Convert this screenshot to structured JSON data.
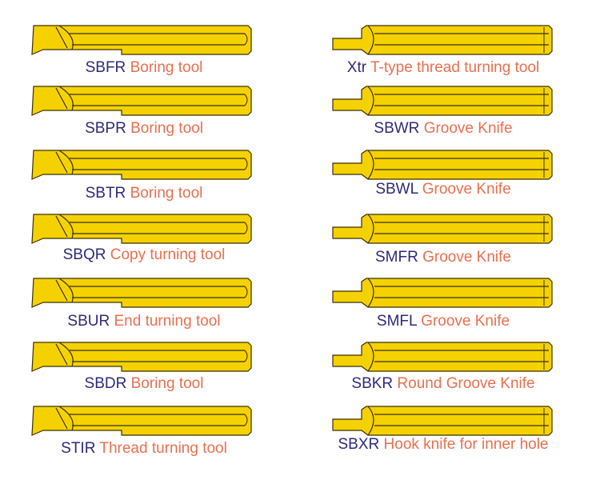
{
  "colors": {
    "tool_fill": "#f5d100",
    "tool_stroke": "#3a3000",
    "code_text": "#2e2a78",
    "name_text": "#e8704f"
  },
  "left": [
    {
      "code": "SBFR",
      "name": "Boring tool"
    },
    {
      "code": "SBPR",
      "name": "Boring tool"
    },
    {
      "code": "SBTR",
      "name": "Boring tool"
    },
    {
      "code": "SBQR",
      "name": "Copy turning tool"
    },
    {
      "code": "SBUR",
      "name": "End turning tool"
    },
    {
      "code": "SBDR",
      "name": "Boring tool"
    },
    {
      "code": "STIR",
      "name": "Thread turning tool"
    }
  ],
  "right": [
    {
      "code": "Xtr",
      "name": "T-type thread turning tool"
    },
    {
      "code": "SBWR",
      "name": "Groove Knife"
    },
    {
      "code": "SBWL",
      "name": "Groove Knife"
    },
    {
      "code": "SMFR",
      "name": "Groove Knife"
    },
    {
      "code": "SMFL",
      "name": "Groove Knife"
    },
    {
      "code": "SBKR",
      "name": "Round Groove Knife"
    },
    {
      "code": "SBXR",
      "name": "Hook knife for inner hole"
    }
  ]
}
